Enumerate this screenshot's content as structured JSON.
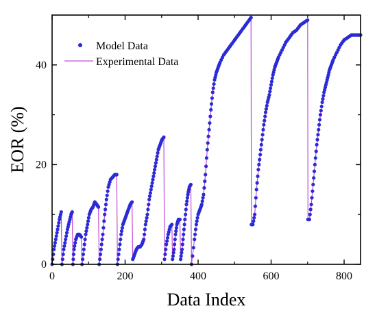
{
  "chart_data": {
    "type": "line",
    "title": "",
    "xlabel": "Data Index",
    "ylabel": "EOR (%)",
    "xlim": [
      0,
      845
    ],
    "ylim": [
      0,
      50
    ],
    "xticks": [
      0,
      200,
      400,
      600,
      800
    ],
    "yticks": [
      0,
      20,
      40
    ],
    "legend_position": "top-left",
    "grid": false,
    "colors": {
      "model": "#2b2bd6",
      "experimental": "#c04dd6"
    },
    "series": [
      {
        "name": "Model Data",
        "style": "markers",
        "segments": [
          {
            "x": [
              0,
              5,
              10,
              15,
              20,
              25
            ],
            "y": [
              0,
              3,
              5,
              7,
              9,
              10.5
            ]
          },
          {
            "x": [
              27,
              32,
              37,
              42,
              47,
              52,
              55
            ],
            "y": [
              0,
              3,
              5,
              7,
              8.5,
              10,
              10.5
            ]
          },
          {
            "x": [
              57,
              60,
              65,
              70,
              75,
              80
            ],
            "y": [
              0,
              3,
              5,
              6,
              6,
              5.5
            ]
          },
          {
            "x": [
              82,
              87,
              92,
              97,
              102,
              107,
              112,
              117,
              122,
              127
            ],
            "y": [
              0,
              3,
              6,
              8,
              10,
              11,
              11.5,
              12.5,
              12,
              11.5
            ]
          },
          {
            "x": [
              129,
              134,
              139,
              144,
              149,
              154,
              160,
              166,
              172,
              177
            ],
            "y": [
              0,
              3,
              6,
              10,
              13,
              15.5,
              17,
              17.5,
              18,
              18
            ]
          },
          {
            "x": [
              179,
              184,
              189,
              194,
              199,
              204,
              209,
              214,
              219
            ],
            "y": [
              0,
              3,
              6,
              8,
              9,
              10,
              11,
              12,
              12.5
            ]
          },
          {
            "x": [
              221,
              226,
              231,
              236,
              241,
              246,
              251,
              256,
              261,
              266,
              271,
              276,
              281,
              286,
              291,
              296,
              301,
              306
            ],
            "y": [
              1,
              2,
              3,
              3.5,
              3.5,
              4,
              5,
              8,
              10,
              13,
              15,
              17,
              19,
              21,
              23,
              24,
              25,
              25.5
            ]
          },
          {
            "x": [
              308,
              313,
              318,
              323,
              328
            ],
            "y": [
              1,
              4,
              6,
              7.5,
              8
            ]
          },
          {
            "x": [
              330,
              334,
              338,
              342,
              346,
              350
            ],
            "y": [
              1,
              3,
              6,
              8,
              9,
              9
            ]
          },
          {
            "x": [
              352,
              356,
              360,
              364,
              368,
              372,
              376,
              380
            ],
            "y": [
              1,
              3,
              6,
              9,
              12,
              14,
              15.5,
              16
            ]
          },
          {
            "x": [
              382,
              390,
              395,
              400,
              405,
              410,
              415,
              420,
              425,
              430,
              435,
              440,
              445,
              450,
              455,
              460,
              470,
              480,
              490,
              500,
              510,
              520,
              530,
              540,
              545
            ],
            "y": [
              0,
              5,
              8,
              10,
              11,
              12,
              14,
              18,
              23,
              27,
              31,
              34.5,
              37,
              38.5,
              39.5,
              40.5,
              42,
              43,
              44,
              45,
              46,
              47,
              48,
              49,
              49.5
            ]
          },
          {
            "x": [
              546,
              550,
              555,
              560,
              565,
              570,
              575,
              580,
              585,
              590,
              595,
              600,
              605,
              610,
              615,
              620,
              630,
              640,
              650,
              660,
              670,
              680,
              690,
              700
            ],
            "y": [
              8,
              8,
              10,
              15,
              19,
              22,
              25,
              28,
              30.5,
              32.5,
              34,
              36,
              38,
              39.5,
              40.5,
              41.5,
              43,
              44.5,
              45.5,
              46.5,
              47,
              48,
              48.5,
              49
            ]
          },
          {
            "x": [
              701,
              705,
              710,
              715,
              720,
              725,
              730,
              735,
              740,
              745,
              750,
              755,
              760,
              765,
              770,
              780,
              790,
              800,
              810,
              820,
              830,
              840,
              845
            ],
            "y": [
              9,
              9,
              12,
              16,
              20,
              24,
              27,
              30,
              32.5,
              34.5,
              36,
              37.5,
              39,
              40,
              41,
              42.5,
              44,
              45,
              45.5,
              46,
              46,
              46,
              46
            ]
          }
        ]
      },
      {
        "name": "Experimental Data",
        "style": "line"
      }
    ]
  }
}
